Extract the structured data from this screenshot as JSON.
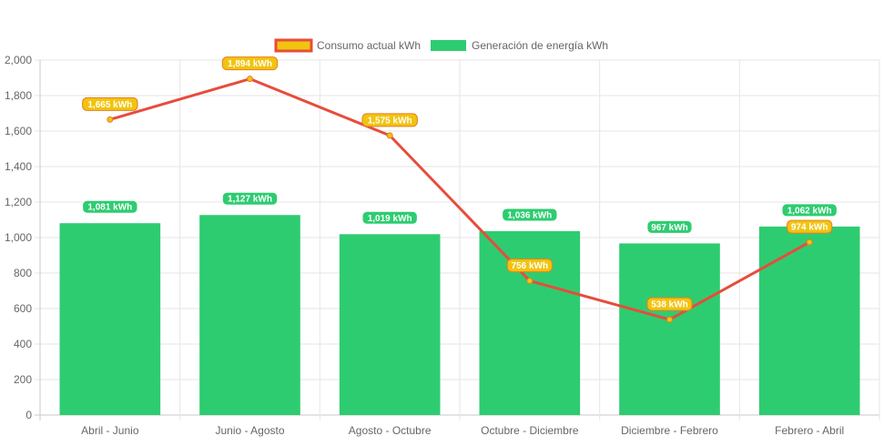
{
  "chart_data": {
    "type": "bar",
    "categories": [
      "Abril - Junio",
      "Junio - Agosto",
      "Agosto - Octubre",
      "Octubre - Diciembre",
      "Diciembre - Febrero",
      "Febrero - Abril"
    ],
    "ylim": [
      0,
      2000
    ],
    "y_ticks": [
      0,
      200,
      400,
      600,
      800,
      1000,
      1200,
      1400,
      1600,
      1800,
      2000
    ],
    "y_tick_labels": [
      "0",
      "200",
      "400",
      "600",
      "800",
      "1,000",
      "1,200",
      "1,400",
      "1,600",
      "1,800",
      "2,000"
    ],
    "grid": true,
    "legend_position": "top-center",
    "series": [
      {
        "name": "Consumo actual kWh",
        "type": "line",
        "color": "#e74c3c",
        "label_color": "#f1c40f",
        "values": [
          1665,
          1894,
          1575,
          756,
          538,
          974
        ],
        "data_labels": [
          "1,665 kWh",
          "1,894 kWh",
          "1,575 kWh",
          "756 kWh",
          "538 kWh",
          "974 kWh"
        ]
      },
      {
        "name": "Generación de energía kWh",
        "type": "bar",
        "color": "#2ecc71",
        "values": [
          1081,
          1127,
          1019,
          1036,
          967,
          1062
        ],
        "data_labels": [
          "1,081 kWh",
          "1,127 kWh",
          "1,019 kWh",
          "1,036 kWh",
          "967 kWh",
          "1,062 kWh"
        ]
      }
    ]
  }
}
